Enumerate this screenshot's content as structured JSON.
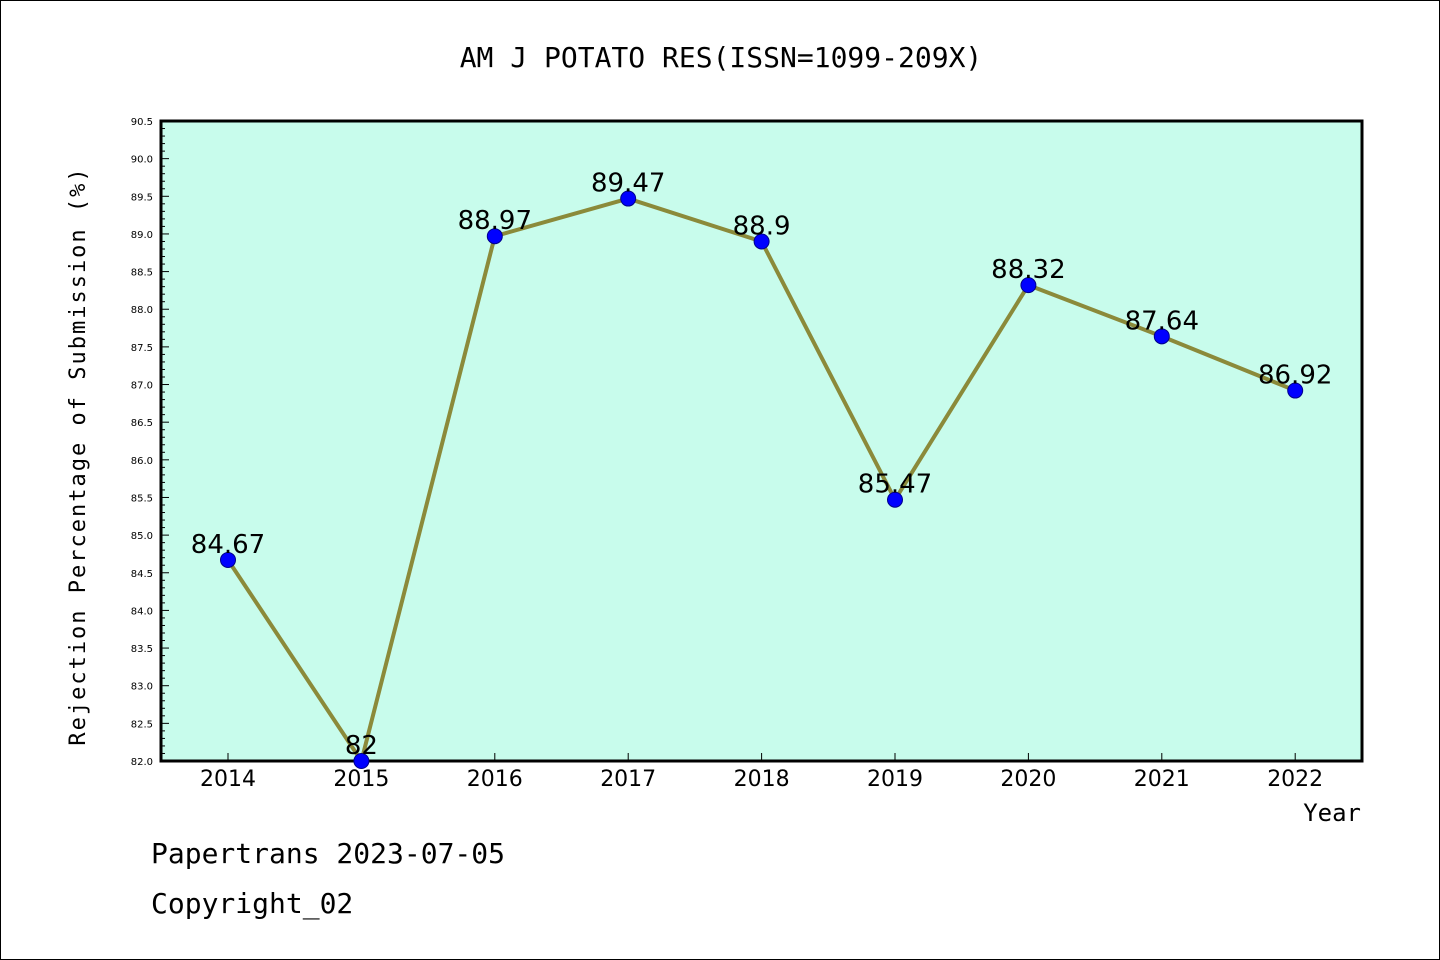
{
  "colors": {
    "plot_background": "#c8fcec",
    "line": "#8b8a3a",
    "marker": "#0000ff"
  },
  "footer": {
    "line1": "Papertrans 2023-07-05",
    "line2": "Copyright_02"
  },
  "chart_data": {
    "type": "line",
    "title": "AM J POTATO RES(ISSN=1099-209X)",
    "xlabel": "Year",
    "ylabel": "Rejection Percentage of Submission (%)",
    "categories": [
      "2014",
      "2015",
      "2016",
      "2017",
      "2018",
      "2019",
      "2020",
      "2021",
      "2022"
    ],
    "values": [
      84.67,
      82,
      88.97,
      89.47,
      88.9,
      85.47,
      88.32,
      87.64,
      86.92
    ],
    "data_labels": [
      "84.67",
      "82",
      "88.97",
      "89.47",
      "88.9",
      "85.47",
      "88.32",
      "87.64",
      "86.92"
    ],
    "ylim": [
      82.0,
      90.5
    ],
    "yticks": [
      "82.0",
      "82.5",
      "83.0",
      "83.5",
      "84.0",
      "84.5",
      "85.0",
      "85.5",
      "86.0",
      "86.5",
      "87.0",
      "87.5",
      "88.0",
      "88.5",
      "89.0",
      "89.5",
      "90.0",
      "90.5"
    ],
    "grid": false,
    "legend": "none",
    "markers": "circle"
  }
}
